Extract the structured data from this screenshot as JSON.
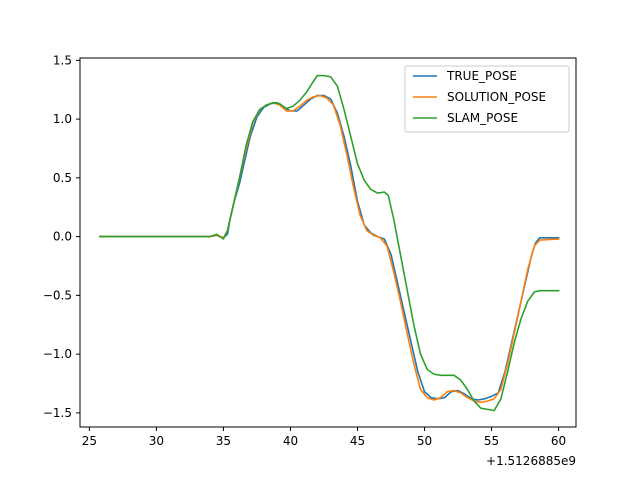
{
  "chart_data": {
    "type": "line",
    "title": "",
    "xlabel": "",
    "ylabel": "",
    "x_offset_label": "+1.5126885e9",
    "xlim": [
      24.3,
      61.3
    ],
    "ylim": [
      -1.62,
      1.52
    ],
    "xticks": [
      {
        "value": 25,
        "label": "25"
      },
      {
        "value": 30,
        "label": "30"
      },
      {
        "value": 35,
        "label": "35"
      },
      {
        "value": 40,
        "label": "40"
      },
      {
        "value": 45,
        "label": "45"
      },
      {
        "value": 50,
        "label": "50"
      },
      {
        "value": 55,
        "label": "55"
      },
      {
        "value": 60,
        "label": "60"
      }
    ],
    "yticks": [
      {
        "value": 1.5,
        "label": "1.5"
      },
      {
        "value": 1.0,
        "label": "1.0"
      },
      {
        "value": 0.5,
        "label": "0.5"
      },
      {
        "value": 0.0,
        "label": "0.0"
      },
      {
        "value": -0.5,
        "label": "−0.5"
      },
      {
        "value": -1.0,
        "label": "−1.0"
      },
      {
        "value": -1.5,
        "label": "−1.5"
      }
    ],
    "grid": false,
    "legend_position": "top-right",
    "series": [
      {
        "name": "TRUE_POSE",
        "color": "#1f77b4",
        "points": [
          [
            25.8,
            0
          ],
          [
            34.0,
            0
          ],
          [
            34.5,
            0.01
          ],
          [
            35.0,
            -0.01
          ],
          [
            35.3,
            0.02
          ],
          [
            35.5,
            0.15
          ],
          [
            35.8,
            0.3
          ],
          [
            36.2,
            0.45
          ],
          [
            36.5,
            0.6
          ],
          [
            37.0,
            0.85
          ],
          [
            37.5,
            1.02
          ],
          [
            38.0,
            1.1
          ],
          [
            38.5,
            1.13
          ],
          [
            39.0,
            1.14
          ],
          [
            39.5,
            1.1
          ],
          [
            40.0,
            1.07
          ],
          [
            40.5,
            1.07
          ],
          [
            41.0,
            1.12
          ],
          [
            41.5,
            1.17
          ],
          [
            42.0,
            1.2
          ],
          [
            42.5,
            1.2
          ],
          [
            43.0,
            1.17
          ],
          [
            43.5,
            1.05
          ],
          [
            44.0,
            0.85
          ],
          [
            44.5,
            0.6
          ],
          [
            45.0,
            0.3
          ],
          [
            45.5,
            0.1
          ],
          [
            46.0,
            0.03
          ],
          [
            46.5,
            0.0
          ],
          [
            47.0,
            -0.02
          ],
          [
            47.5,
            -0.15
          ],
          [
            48.0,
            -0.4
          ],
          [
            48.5,
            -0.65
          ],
          [
            49.0,
            -0.9
          ],
          [
            49.5,
            -1.15
          ],
          [
            50.0,
            -1.32
          ],
          [
            50.5,
            -1.37
          ],
          [
            51.0,
            -1.38
          ],
          [
            51.5,
            -1.37
          ],
          [
            52.0,
            -1.32
          ],
          [
            52.5,
            -1.31
          ],
          [
            53.0,
            -1.34
          ],
          [
            53.5,
            -1.38
          ],
          [
            54.0,
            -1.39
          ],
          [
            54.5,
            -1.38
          ],
          [
            55.0,
            -1.36
          ],
          [
            55.5,
            -1.33
          ],
          [
            56.0,
            -1.15
          ],
          [
            56.5,
            -0.9
          ],
          [
            57.0,
            -0.65
          ],
          [
            57.5,
            -0.4
          ],
          [
            58.0,
            -0.15
          ],
          [
            58.3,
            -0.05
          ],
          [
            58.6,
            -0.01
          ],
          [
            60.0,
            -0.01
          ]
        ]
      },
      {
        "name": "SOLUTION_POSE",
        "color": "#ff7f0e",
        "points": [
          [
            25.8,
            0
          ],
          [
            34.0,
            0
          ],
          [
            34.5,
            0.01
          ],
          [
            35.0,
            -0.01
          ],
          [
            35.3,
            0.05
          ],
          [
            35.7,
            0.25
          ],
          [
            36.2,
            0.5
          ],
          [
            36.7,
            0.75
          ],
          [
            37.2,
            0.97
          ],
          [
            37.7,
            1.08
          ],
          [
            38.2,
            1.12
          ],
          [
            38.7,
            1.14
          ],
          [
            39.2,
            1.12
          ],
          [
            39.7,
            1.07
          ],
          [
            40.2,
            1.07
          ],
          [
            40.7,
            1.11
          ],
          [
            41.2,
            1.16
          ],
          [
            41.7,
            1.19
          ],
          [
            42.2,
            1.2
          ],
          [
            42.7,
            1.18
          ],
          [
            43.2,
            1.12
          ],
          [
            43.7,
            0.95
          ],
          [
            44.2,
            0.7
          ],
          [
            44.7,
            0.42
          ],
          [
            45.2,
            0.18
          ],
          [
            45.7,
            0.05
          ],
          [
            46.2,
            0.01
          ],
          [
            46.7,
            -0.01
          ],
          [
            47.2,
            -0.08
          ],
          [
            47.7,
            -0.3
          ],
          [
            48.2,
            -0.55
          ],
          [
            48.7,
            -0.82
          ],
          [
            49.2,
            -1.08
          ],
          [
            49.7,
            -1.3
          ],
          [
            50.2,
            -1.37
          ],
          [
            50.7,
            -1.39
          ],
          [
            51.2,
            -1.37
          ],
          [
            51.7,
            -1.32
          ],
          [
            52.2,
            -1.31
          ],
          [
            52.7,
            -1.33
          ],
          [
            53.2,
            -1.37
          ],
          [
            53.7,
            -1.4
          ],
          [
            54.2,
            -1.41
          ],
          [
            54.7,
            -1.4
          ],
          [
            55.2,
            -1.38
          ],
          [
            55.7,
            -1.3
          ],
          [
            56.2,
            -1.08
          ],
          [
            56.7,
            -0.82
          ],
          [
            57.2,
            -0.55
          ],
          [
            57.7,
            -0.28
          ],
          [
            58.2,
            -0.08
          ],
          [
            58.6,
            -0.03
          ],
          [
            60.0,
            -0.02
          ]
        ]
      },
      {
        "name": "SLAM_POSE",
        "color": "#2ca02c",
        "points": [
          [
            25.8,
            0
          ],
          [
            34.0,
            0
          ],
          [
            34.5,
            0.02
          ],
          [
            35.0,
            -0.02
          ],
          [
            35.3,
            0.05
          ],
          [
            35.7,
            0.25
          ],
          [
            36.2,
            0.5
          ],
          [
            36.7,
            0.78
          ],
          [
            37.2,
            0.98
          ],
          [
            37.7,
            1.08
          ],
          [
            38.2,
            1.12
          ],
          [
            38.7,
            1.14
          ],
          [
            39.2,
            1.13
          ],
          [
            39.7,
            1.09
          ],
          [
            40.2,
            1.11
          ],
          [
            40.7,
            1.16
          ],
          [
            41.2,
            1.23
          ],
          [
            41.7,
            1.32
          ],
          [
            42.0,
            1.37
          ],
          [
            42.5,
            1.37
          ],
          [
            43.0,
            1.36
          ],
          [
            43.5,
            1.28
          ],
          [
            44.0,
            1.08
          ],
          [
            44.5,
            0.85
          ],
          [
            45.0,
            0.62
          ],
          [
            45.5,
            0.48
          ],
          [
            46.0,
            0.4
          ],
          [
            46.5,
            0.37
          ],
          [
            47.0,
            0.38
          ],
          [
            47.3,
            0.35
          ],
          [
            47.7,
            0.15
          ],
          [
            48.2,
            -0.15
          ],
          [
            48.7,
            -0.45
          ],
          [
            49.2,
            -0.75
          ],
          [
            49.7,
            -1.0
          ],
          [
            50.2,
            -1.13
          ],
          [
            50.7,
            -1.17
          ],
          [
            51.2,
            -1.18
          ],
          [
            51.7,
            -1.18
          ],
          [
            52.2,
            -1.18
          ],
          [
            52.7,
            -1.22
          ],
          [
            53.2,
            -1.3
          ],
          [
            53.7,
            -1.4
          ],
          [
            54.2,
            -1.46
          ],
          [
            54.7,
            -1.47
          ],
          [
            55.2,
            -1.48
          ],
          [
            55.7,
            -1.38
          ],
          [
            56.2,
            -1.15
          ],
          [
            56.7,
            -0.9
          ],
          [
            57.2,
            -0.7
          ],
          [
            57.7,
            -0.55
          ],
          [
            58.2,
            -0.47
          ],
          [
            58.6,
            -0.46
          ],
          [
            60.0,
            -0.46
          ]
        ]
      }
    ]
  }
}
